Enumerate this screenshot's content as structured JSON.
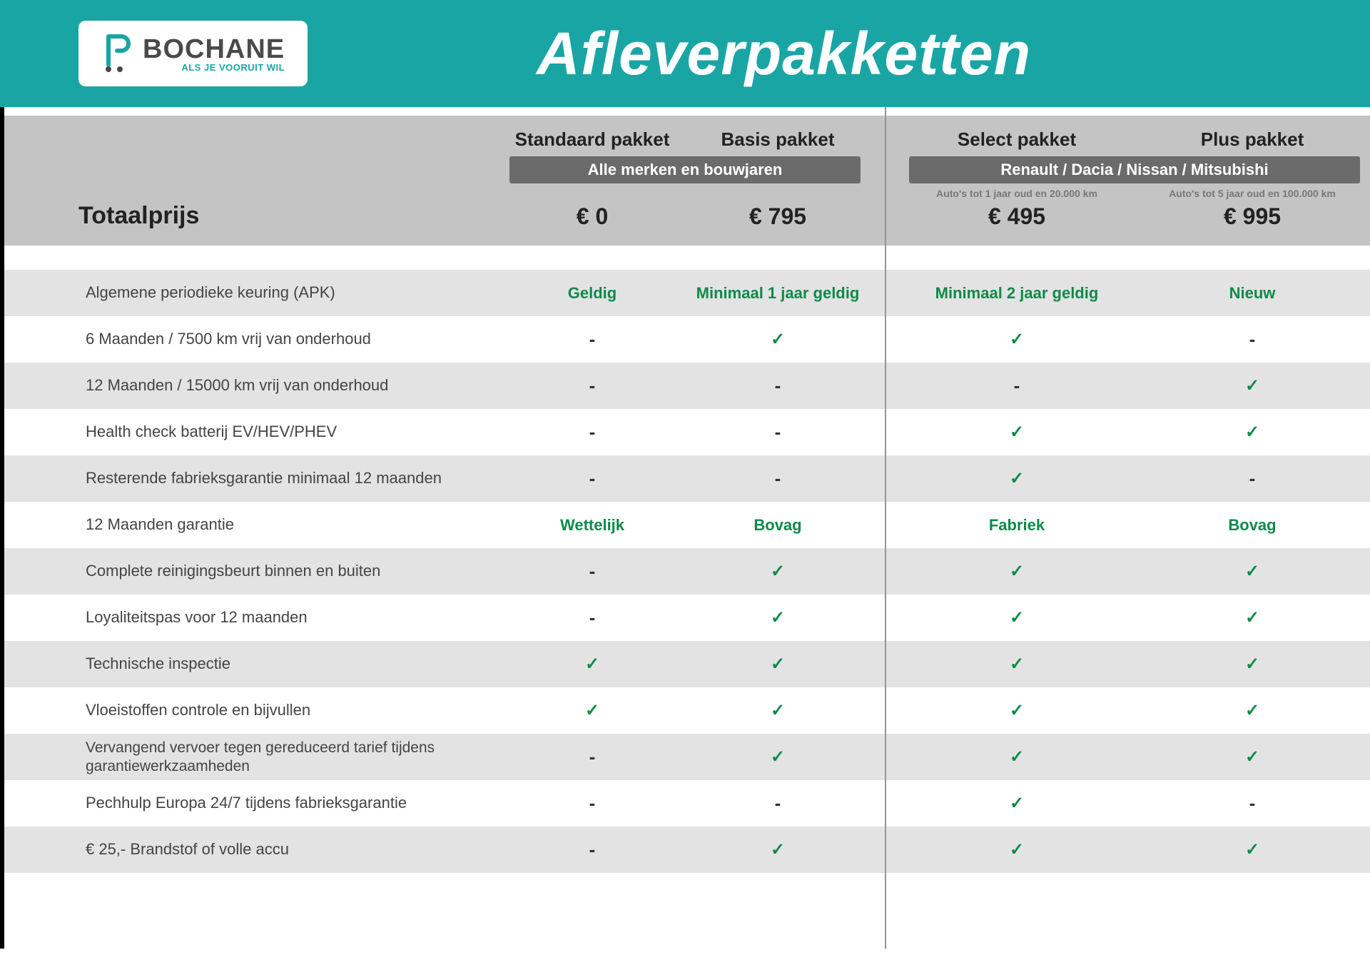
{
  "logo": {
    "brand": "BOCHANE",
    "tagline": "ALS JE VOORUIT WIL"
  },
  "header_title": "Afleverpakketten",
  "colors": {
    "header_bg": "#1aa5a5",
    "pill_bg": "#6b6b6b",
    "head_bg": "#c4c4c4",
    "alt_row_bg": "#e3e3e3",
    "accent_green": "#0e8a4a",
    "text_dark": "#222222",
    "text_mid": "#444444",
    "note_grey": "#777777",
    "separator": "#959595"
  },
  "columns": [
    {
      "id": "standaard",
      "title": "Standaard pakket",
      "price": "€ 0",
      "note": ""
    },
    {
      "id": "basis",
      "title": "Basis pakket",
      "price": "€ 795",
      "note": ""
    },
    {
      "id": "select",
      "title": "Select pakket",
      "price": "€ 495",
      "note": "Auto's tot 1 jaar oud en 20.000 km"
    },
    {
      "id": "plus",
      "title": "Plus pakket",
      "price": "€ 995",
      "note": "Auto's tot 5 jaar oud en 100.000 km"
    }
  ],
  "group_pill_left": "Alle merken en bouwjaren",
  "group_pill_right": "Renault / Dacia / Nissan / Mitsubishi",
  "price_label": "Totaalprijs",
  "features": [
    {
      "label": "Algemene periodieke keuring (APK)",
      "vals": [
        "Geldig",
        "Minimaal 1 jaar geldig",
        "Minimaal 2 jaar geldig",
        "Nieuw"
      ]
    },
    {
      "label": "6 Maanden / 7500 km vrij van onderhoud",
      "vals": [
        "-",
        "check",
        "check",
        "-"
      ]
    },
    {
      "label": "12 Maanden / 15000 km vrij van onderhoud",
      "vals": [
        "-",
        "-",
        "-",
        "check"
      ]
    },
    {
      "label": "Health check batterij EV/HEV/PHEV",
      "vals": [
        "-",
        "-",
        "check",
        "check"
      ]
    },
    {
      "label": "Resterende fabrieksgarantie minimaal 12 maanden",
      "vals": [
        "-",
        "-",
        "check",
        "-"
      ]
    },
    {
      "label": "12 Maanden  garantie",
      "vals": [
        "Wettelijk",
        "Bovag",
        "Fabriek",
        "Bovag"
      ]
    },
    {
      "label": "Complete reinigingsbeurt binnen en buiten",
      "vals": [
        "-",
        "check",
        "check",
        "check"
      ]
    },
    {
      "label": "Loyaliteitspas voor 12 maanden",
      "vals": [
        "-",
        "check",
        "check",
        "check"
      ]
    },
    {
      "label": "Technische inspectie",
      "vals": [
        "check",
        "check",
        "check",
        "check"
      ]
    },
    {
      "label": "Vloeistoffen controle en bijvullen",
      "vals": [
        "check",
        "check",
        "check",
        "check"
      ]
    },
    {
      "label": "Vervangend vervoer tegen gereduceerd tarief tijdens garantiewerkzaamheden",
      "vals": [
        "-",
        "check",
        "check",
        "check"
      ],
      "twoline": true
    },
    {
      "label": "Pechhulp Europa 24/7 tijdens fabrieksgarantie",
      "vals": [
        "-",
        "-",
        "check",
        "-"
      ]
    },
    {
      "label": "€ 25,- Brandstof of  volle accu",
      "vals": [
        "-",
        "check",
        "check",
        "check"
      ]
    }
  ]
}
